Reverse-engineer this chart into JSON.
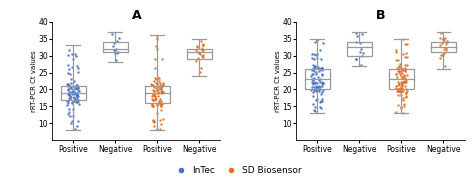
{
  "title_A": "A",
  "title_B": "B",
  "ylabel": "rRT-PCR Ct values",
  "ylim": [
    5,
    40
  ],
  "yticks": [
    10,
    15,
    20,
    25,
    30,
    35,
    40
  ],
  "xlabel_ticks": [
    "Positive",
    "Negative",
    "Positive",
    "Negative"
  ],
  "color_blue": "#4472C4",
  "color_orange": "#E07020",
  "box_edge_color": "#999999",
  "legend_labels": [
    "InTec",
    "SD Biosensor"
  ],
  "panel_A": {
    "blue_pos": {
      "median": 19,
      "q1": 17,
      "q3": 21,
      "whislo": 8,
      "whishi": 33,
      "n": 90
    },
    "blue_neg": {
      "median": 32,
      "q1": 31,
      "q3": 34,
      "whislo": 28,
      "whishi": 37,
      "n": 12
    },
    "orange_pos": {
      "median": 19,
      "q1": 16,
      "q3": 21,
      "whislo": 8,
      "whishi": 36,
      "n": 90
    },
    "orange_neg": {
      "median": 31,
      "q1": 29,
      "q3": 32,
      "whislo": 24,
      "whishi": 35,
      "n": 20
    }
  },
  "panel_B": {
    "blue_pos": {
      "median": 23,
      "q1": 20,
      "q3": 26,
      "whislo": 13,
      "whishi": 35,
      "n": 90
    },
    "blue_neg": {
      "median": 32.5,
      "q1": 30,
      "q3": 34,
      "whislo": 27,
      "whishi": 37,
      "n": 12
    },
    "orange_pos": {
      "median": 23,
      "q1": 20,
      "q3": 26,
      "whislo": 13,
      "whishi": 35,
      "n": 90
    },
    "orange_neg": {
      "median": 32.5,
      "q1": 31,
      "q3": 34,
      "whislo": 26,
      "whishi": 37,
      "n": 20
    }
  }
}
